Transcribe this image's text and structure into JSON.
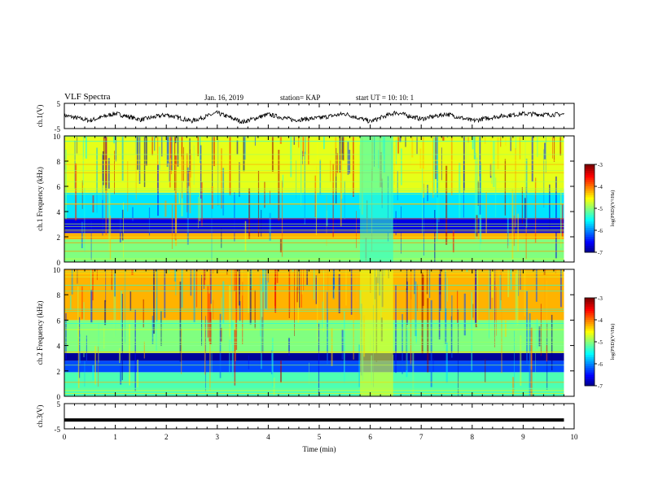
{
  "header": {
    "title": "VLF Spectra",
    "date": "Jan. 16, 2019",
    "station": "station= KAP",
    "start": "start UT = 10: 10: 1"
  },
  "chart_data": [
    {
      "type": "line",
      "panel": "ch1 waveform",
      "ylabel": "ch.1(V)",
      "ylim": [
        -5,
        5
      ],
      "yticks": [
        "5",
        "-5"
      ],
      "x": [
        0,
        0.5,
        1,
        1.5,
        2,
        2.5,
        3,
        3.5,
        4,
        4.5,
        5,
        5.5,
        6,
        6.5,
        7,
        7.5,
        8,
        8.5,
        9,
        9.5,
        9.8
      ],
      "values": [
        0.2,
        -1.8,
        1.0,
        -1.5,
        0.5,
        -2.0,
        1.2,
        -2.4,
        0.6,
        -1.6,
        -0.8,
        0.9,
        -2.2,
        1.4,
        -1.2,
        0.8,
        -1.9,
        -0.2,
        0.9,
        0.5,
        0.7
      ],
      "xlim": [
        0,
        10
      ]
    },
    {
      "type": "heatmap",
      "panel": "ch1 spectrogram",
      "ylabel": "ch.1 Frequency (kHz)",
      "ylim": [
        0,
        10
      ],
      "yticks": [
        "0",
        "2",
        "4",
        "6",
        "8",
        "10"
      ],
      "xlim": [
        0,
        10
      ],
      "colorbar": {
        "label": "log(PSD)(V²/Hz)",
        "range": [
          -7,
          -3
        ],
        "ticks": [
          "-3",
          "-4",
          "-5",
          "-6",
          "-7"
        ]
      },
      "bands": [
        {
          "from": 0.0,
          "to": 1.8,
          "level": -5.0
        },
        {
          "from": 1.8,
          "to": 2.3,
          "level": -4.2
        },
        {
          "from": 2.3,
          "to": 3.5,
          "level": -6.6
        },
        {
          "from": 3.5,
          "to": 5.5,
          "level": -5.6
        },
        {
          "from": 5.5,
          "to": 10.0,
          "level": -4.6
        }
      ],
      "quiet_segment": {
        "x": [
          5.8,
          6.45
        ],
        "level": -5.3
      }
    },
    {
      "type": "heatmap",
      "panel": "ch2 spectrogram",
      "ylabel": "ch.2 Frequency (kHz)",
      "ylim": [
        0,
        10
      ],
      "yticks": [
        "0",
        "2",
        "4",
        "6",
        "8",
        "10"
      ],
      "xlim": [
        0,
        10
      ],
      "colorbar": {
        "label": "log(PSD)(V²/Hz)",
        "range": [
          -7,
          -3
        ],
        "ticks": [
          "-3",
          "-4",
          "-5",
          "-6",
          "-7"
        ]
      },
      "bands": [
        {
          "from": 0.0,
          "to": 1.9,
          "level": -5.2
        },
        {
          "from": 1.9,
          "to": 2.8,
          "level": -6.2
        },
        {
          "from": 2.8,
          "to": 3.4,
          "level": -6.9
        },
        {
          "from": 3.4,
          "to": 4.0,
          "level": -5.0
        },
        {
          "from": 4.0,
          "to": 6.0,
          "level": -5.0
        },
        {
          "from": 6.0,
          "to": 10.0,
          "level": -4.2
        }
      ],
      "quiet_segment": {
        "x": [
          5.8,
          6.45
        ],
        "level": -4.6
      }
    },
    {
      "type": "line",
      "panel": "ch3 waveform",
      "ylabel": "ch.3(V)",
      "ylim": [
        -5,
        5
      ],
      "yticks": [
        "5",
        "-5"
      ],
      "x": [
        0,
        9.8
      ],
      "values": [
        -1.5,
        -1.5
      ],
      "xlim": [
        0,
        10
      ],
      "xlabel": "Time (min)",
      "xticks": [
        "0",
        "1",
        "2",
        "3",
        "4",
        "5",
        "6",
        "7",
        "8",
        "9",
        "10"
      ]
    }
  ],
  "colors": {
    "waveform": "#000000",
    "axes": "#000000"
  }
}
